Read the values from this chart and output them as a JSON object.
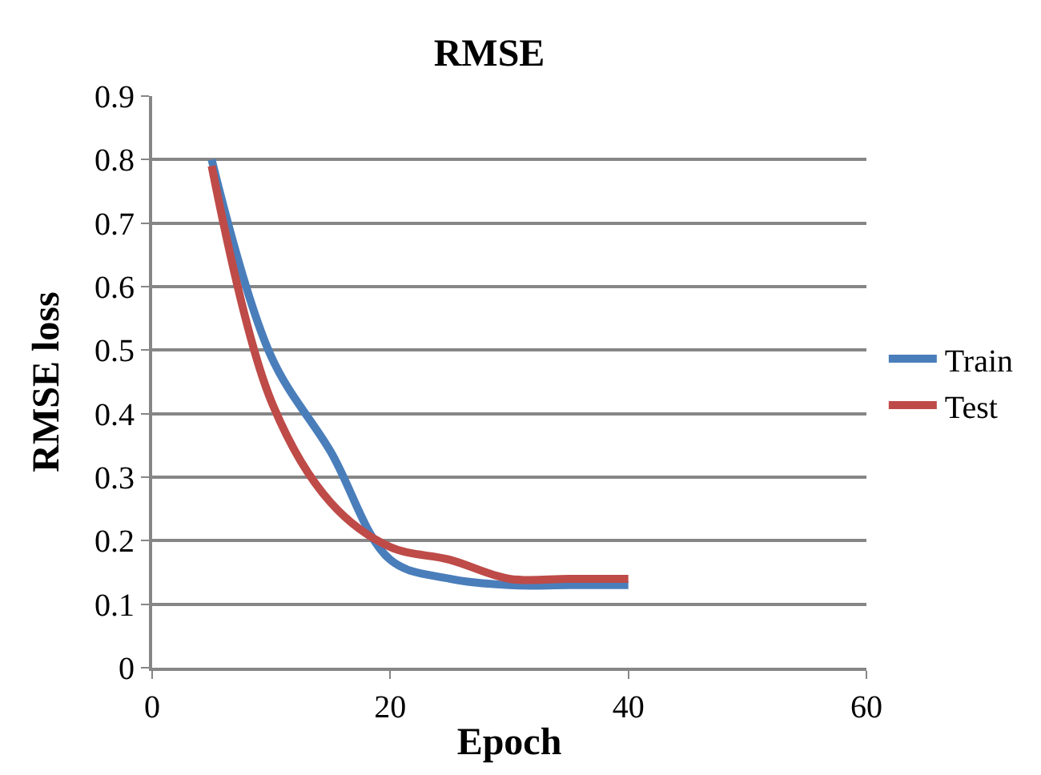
{
  "chart_data": {
    "type": "line",
    "title": "RMSE",
    "xlabel": "Epoch",
    "ylabel": "RMSE loss",
    "x": [
      5,
      10,
      15,
      20,
      25,
      30,
      35,
      40
    ],
    "series": [
      {
        "name": "Train",
        "color": "#4a7ebb",
        "values": [
          0.8,
          0.49,
          0.34,
          0.17,
          0.14,
          0.13,
          0.13,
          0.13
        ]
      },
      {
        "name": "Test",
        "color": "#be4b48",
        "values": [
          0.79,
          0.42,
          0.26,
          0.19,
          0.17,
          0.14,
          0.14,
          0.14
        ]
      }
    ],
    "xlim": [
      0,
      60
    ],
    "xticks": [
      0,
      20,
      40,
      60
    ],
    "ylim": [
      0,
      0.9
    ],
    "yticks": [
      0,
      0.1,
      0.2,
      0.3,
      0.4,
      0.5,
      0.6,
      0.7,
      0.8,
      0.9
    ],
    "grid": "y",
    "legend": "right",
    "marker": "none",
    "line_style": "solid"
  }
}
